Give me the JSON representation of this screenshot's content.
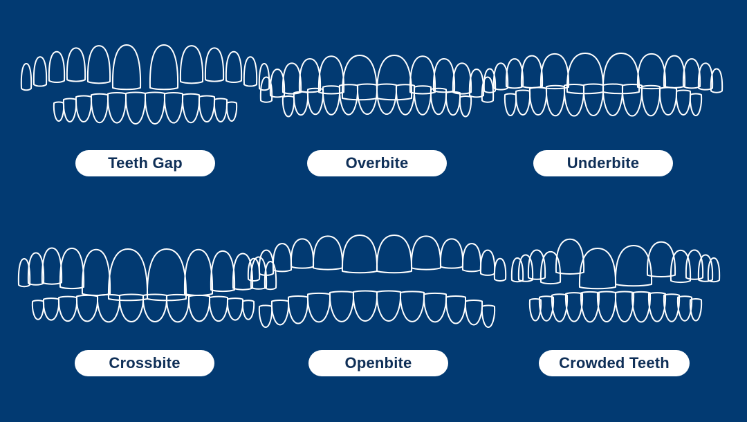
{
  "background_color": "#023a72",
  "label_color": "#0f2f57",
  "items": [
    {
      "label": "Teeth Gap"
    },
    {
      "label": "Overbite"
    },
    {
      "label": "Underbite"
    },
    {
      "label": "Crossbite"
    },
    {
      "label": "Openbite"
    },
    {
      "label": "Crowded Teeth"
    }
  ]
}
